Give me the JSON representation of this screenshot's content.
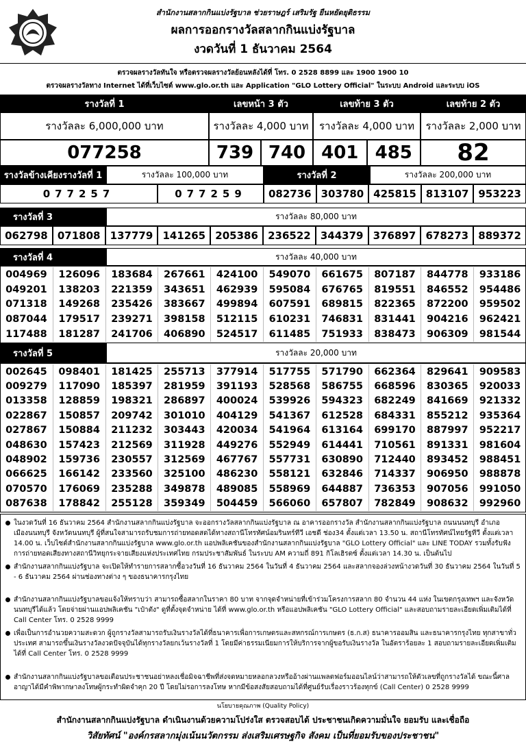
{
  "header": {
    "org": "สำนักงานสลากกินแบ่งรัฐบาล  ช่วยราษฎร์  เสริมรัฐ  ยืนหยัดยุติธรรม",
    "title": "ผลการออกรางวัลสลากกินแบ่งรัฐบาล",
    "date": "งวดวันที่ 1 ธันวาคม 2564"
  },
  "contact": {
    "line1": "ตรวจผลรางวัลทันใจ  หรือตรวจผลรางวัลย้อนหลังได้ที่  โทร. 0 2528 8899 และ 1900 1900 10",
    "line2": "ตรวจผลรางวัลทาง Internet ได้ที่เว็บไซต์  www.glo.or.th และ Application \"GLO Lottery Official\" ในระบบ Android และระบบ iOS"
  },
  "prize1": {
    "label": "รางวัลที่ 1",
    "amount": "รางวัลละ  6,000,000 บาท",
    "number": "077258"
  },
  "front3": {
    "label": "เลขหน้า 3 ตัว",
    "amount": "รางวัลละ  4,000 บาท",
    "numbers": [
      "739",
      "740"
    ]
  },
  "back3": {
    "label": "เลขท้าย 3 ตัว",
    "amount": "รางวัลละ  4,000 บาท",
    "numbers": [
      "401",
      "485"
    ]
  },
  "back2": {
    "label": "เลขท้าย 2 ตัว",
    "amount": "รางวัลละ  2,000 บาท",
    "number": "82"
  },
  "near1": {
    "label": "รางวัลข้างเคียงรางวัลที่ 1",
    "amount": "รางวัลละ 100,000 บาท",
    "numbers": [
      "077257",
      "077259"
    ]
  },
  "prize2": {
    "label": "รางวัลที่  2",
    "amount": "รางวัลละ  200,000 บาท",
    "numbers": [
      "082736",
      "303780",
      "425815",
      "813107",
      "953223"
    ]
  },
  "prize3": {
    "label": "รางวัลที่  3",
    "amount": "รางวัลละ  80,000 บาท",
    "numbers": [
      "062798",
      "071808",
      "137779",
      "141265",
      "205386",
      "236522",
      "344379",
      "376897",
      "678273",
      "889372"
    ]
  },
  "prize4": {
    "label": "รางวัลที่  4",
    "amount": "รางวัลละ  40,000 บาท",
    "rows": [
      [
        "004969",
        "126096",
        "183684",
        "267661",
        "424100",
        "549070",
        "661675",
        "807187",
        "844778",
        "933186"
      ],
      [
        "049201",
        "138203",
        "221359",
        "343651",
        "462939",
        "595084",
        "676765",
        "819551",
        "846552",
        "954486"
      ],
      [
        "071318",
        "149268",
        "235426",
        "383667",
        "499894",
        "607591",
        "689815",
        "822365",
        "872200",
        "959502"
      ],
      [
        "087044",
        "179517",
        "239271",
        "398158",
        "512115",
        "610231",
        "746831",
        "831441",
        "904216",
        "962421"
      ],
      [
        "117488",
        "181287",
        "241706",
        "406890",
        "524517",
        "611485",
        "751933",
        "838473",
        "906309",
        "981544"
      ]
    ]
  },
  "prize5": {
    "label": "รางวัลที่  5",
    "amount": "รางวัลละ  20,000 บาท",
    "rows": [
      [
        "002645",
        "098401",
        "181425",
        "255713",
        "377914",
        "517755",
        "571790",
        "662364",
        "829641",
        "909583"
      ],
      [
        "009279",
        "117090",
        "185397",
        "281959",
        "391193",
        "528568",
        "586755",
        "668596",
        "830365",
        "920033"
      ],
      [
        "013358",
        "128859",
        "198321",
        "286897",
        "400024",
        "539926",
        "594323",
        "682249",
        "841669",
        "921332"
      ],
      [
        "022867",
        "150857",
        "209742",
        "301010",
        "404129",
        "541367",
        "612528",
        "684331",
        "855212",
        "935364"
      ],
      [
        "027867",
        "150884",
        "211232",
        "303443",
        "420034",
        "541964",
        "613164",
        "699170",
        "887997",
        "952217"
      ],
      [
        "048630",
        "157423",
        "212569",
        "311928",
        "449276",
        "552949",
        "614441",
        "710561",
        "891331",
        "981604"
      ],
      [
        "048902",
        "159736",
        "230557",
        "312569",
        "467767",
        "557731",
        "630890",
        "712440",
        "893452",
        "988451"
      ],
      [
        "066625",
        "166142",
        "233560",
        "325100",
        "486230",
        "558121",
        "632846",
        "714337",
        "906950",
        "988878"
      ],
      [
        "070570",
        "176069",
        "235288",
        "349878",
        "489085",
        "558969",
        "644887",
        "736353",
        "907056",
        "991050"
      ],
      [
        "087638",
        "178842",
        "255128",
        "359349",
        "504459",
        "566060",
        "657807",
        "782849",
        "908632",
        "992960"
      ]
    ]
  },
  "notes": [
    "ในงวดวันที่ 16 ธันวาคม 2564 สำนักงานสลากกินแบ่งรัฐบาล จะออกรางวัลสลากกินแบ่งรัฐบาล ณ อาคารออกรางวัล สำนักงานสลากกินแบ่งรัฐบาล ถนนนนทบุรี อำเภอเมืองนนทบุรี จังหวัดนนทบุรี ผู้ที่สนใจสามารถรับชมการถ่ายทอดสดได้ทางสถานีโทรทัศน์อมรินทร์ทีวี เอชดี ช่อง34 ตั้งแต่เวลา 13.50 น. สถานีโทรทัศน์ไทยรัฐทีวี ตั้งแต่เวลา 14.00 น. เว็บไซต์สำนักงานสลากกินแบ่งรัฐบาล www.glo.or.th แอปพลิเคชันของสำนักงานสลากกินแบ่งรัฐบาล \"GLO Lottery Official\" และ LINE TODAY รวมทั้งรับฟังการถ่ายทอดเสียงทางสถานีวิทยุกระจายเสียงแห่งประเทศไทย  กรมประชาสัมพันธ์ ในระบบ AM ความถี่ 891 กิโลเฮิรตซ์  ตั้งแต่เวลา 14.30 น. เป็นต้นไป",
    "สำนักงานสลากกินแบ่งรัฐบาล จะเปิดให้ทำรายการสลากซื้อวงวันที่ 16 ธันวาคม 2564 ในวันที่ 4 ธันวาคม 2564 และสลากจองล่วงหน้างวดวันที่ 30 ธันวาคม 2564 ในวันที่ 5 - 6 ธันวาคม 2564 ผ่านช่องทางต่าง ๆ ของธนาคารกรุงไทย",
    "สำนักงานสลากกินแบ่งรัฐบาลขอแจ้งให้ทราบว่า สามารถซื้อสลากในราคา 80 บาท จากจุดจำหน่ายที่เข้าร่วมโครงการสลาก 80 จำนวน 44 แห่ง ในเขตกรุงเทพฯ และจังหวัดนนทบุรีได้แล้ว โดยจ่ายผ่านแอปพลิเคชัน \"เป๋าตัง\" ดูที่ตั้งจุดจำหน่าย ได้ที่ www.glo.or.th หรือแอปพลิเคชัน \"GLO Lottery Official\" และสอบถามรายละเอียดเพิ่มเติมได้ที่ Call Center โทร. 0 2528 9999",
    "เพื่อเป็นการอำนวยความสะดวก ผู้ถูกรางวัลสามารถรับเงินรางวัลได้ที่ธนาคารเพื่อการเกษตรและสหกรณ์การเกษตร (ธ.ก.ส) ธนาคารออมสิน และธนาคารกรุงไทย ทุกสาขาทั่วประเทศ สามารถขึ้นเงินรางวัลงวดปัจจุบันได้ทุกรางวัลยกเว้นรางวัลที่ 1 โดยมีค่าธรรมเนียมการให้บริการจากผู้ขอรับเงินรางวัล ในอัตราร้อยละ 1 สอบถามรายละเอียดเพิ่มเติมได้ที่  Call Center โทร. 0 2528 9999",
    "สำนักงานสลากกินแบ่งรัฐบาลขอเตือนประชาชนอย่าหลงเชื่อมิจฉาชีพที่ส่งจดหมายหลอกลวงหรืออ้างผ่านแพลตฟอร์มออนไลน์ว่าสามารถให้ตัวเลขที่ถูกรางวัลได้ ขณะนี้ศาลอาญาได้มีคำพิพากษาลงโทษผู้กระทำผิดจำคุก 20 ปี โดยไม่รอการลงโทษ หากมีข้อสงสัยสอบถามได้ที่ศูนย์รับเรื่องราวร้องทุกข์ (Call Center) 0 2528 9999"
  ],
  "footer": {
    "policy_title": "นโยบายคุณภาพ (Quality Policy)",
    "policy": "สำนักงานสลากกินแบ่งรัฐบาล ดำเนินงานด้วยความโปร่งใส ตรวจสอบได้ ประชาชนเกิดความมั่นใจ ยอมรับ และเชื่อถือ",
    "vision": "วิสัยทัศน์ \"องค์กรสลากมุ่งเน้นนวัตกรรม ส่งเสริมเศรษฐกิจ สังคม เป็นที่ยอมรับของประชาชน\""
  }
}
